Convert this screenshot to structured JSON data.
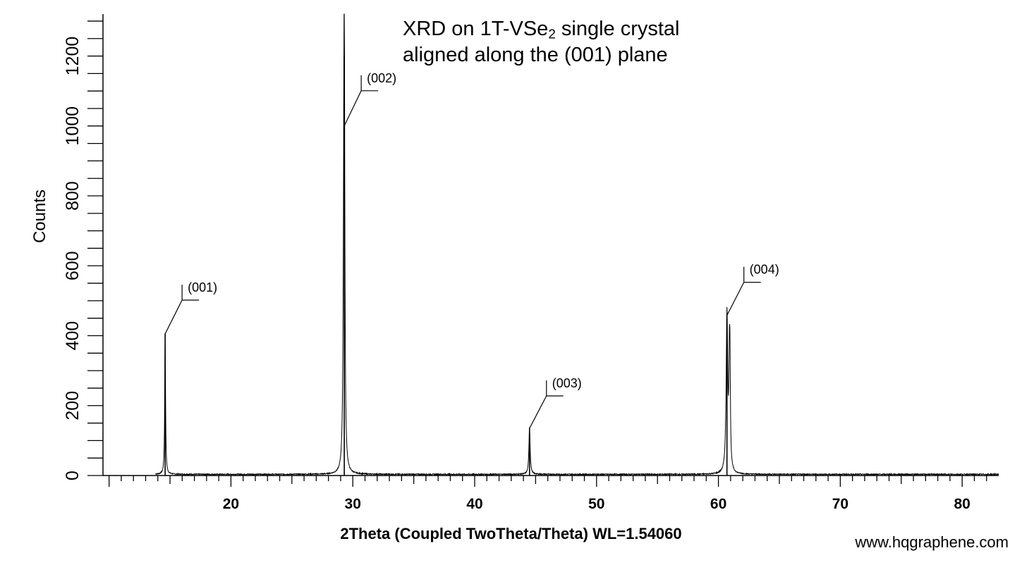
{
  "chart_data": {
    "type": "line",
    "title_line1_pre": "XRD on 1T-VSe",
    "title_line1_sub": "2",
    "title_line1_post": " single crystal",
    "title_line2": "aligned along the (001) plane",
    "xlabel": "2Theta (Coupled TwoTheta/Theta) WL=1.54060",
    "ylabel": "Counts",
    "xlim": [
      9.5,
      83
    ],
    "ylim": [
      0,
      1320
    ],
    "x_ticks": [
      20,
      30,
      40,
      50,
      60,
      70,
      80
    ],
    "y_ticks": [
      0,
      200,
      400,
      600,
      800,
      1000,
      1200
    ],
    "grid": false,
    "baseline": 2,
    "peaks": [
      {
        "label": "(001)",
        "x": 14.6,
        "y": 405,
        "width": 0.08
      },
      {
        "label": "(002)",
        "x": 29.3,
        "y": 1200,
        "width": 0.1
      },
      {
        "label": "(003)",
        "x": 44.5,
        "y": 135,
        "width": 0.12
      },
      {
        "label": "(004)",
        "x": 60.7,
        "y": 458,
        "width": 0.15
      }
    ],
    "shoulders": [
      {
        "x": 29.25,
        "y": 390,
        "width": 0.12
      },
      {
        "x": 60.9,
        "y": 280,
        "width": 0.1
      },
      {
        "x": 60.95,
        "y": 220,
        "width": 0.08
      }
    ]
  },
  "watermark": "www.hqgraphene.com"
}
